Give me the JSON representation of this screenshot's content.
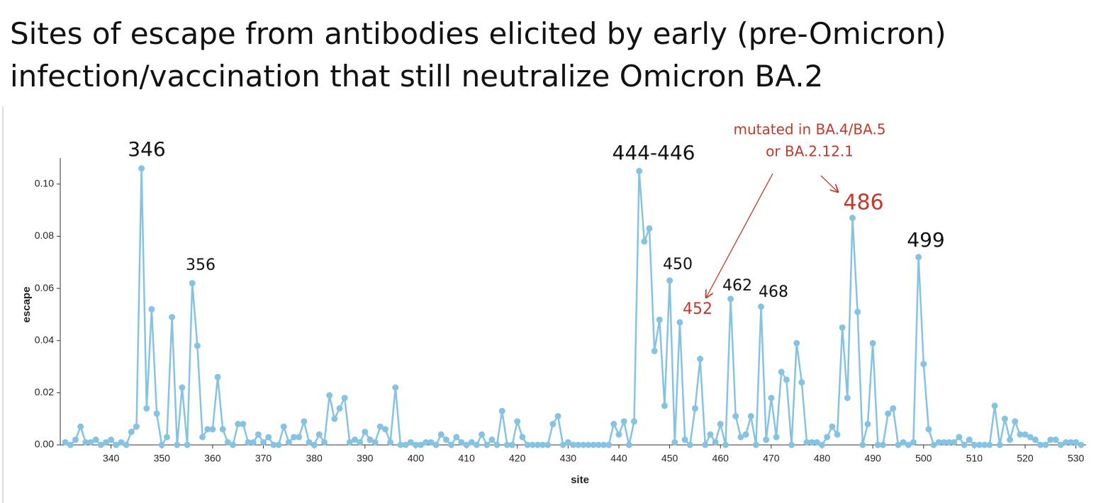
{
  "chart_data": {
    "type": "line",
    "title": [
      "Sites of escape from antibodies elicited by early (pre-Omicron)",
      "infection/vaccination that still neutralize Omicron BA.2"
    ],
    "xlabel": "site",
    "ylabel": "escape",
    "x": [
      331,
      332,
      333,
      334,
      335,
      336,
      337,
      338,
      339,
      340,
      341,
      342,
      343,
      344,
      345,
      346,
      347,
      348,
      349,
      350,
      351,
      352,
      353,
      354,
      355,
      356,
      357,
      358,
      359,
      360,
      361,
      362,
      363,
      364,
      365,
      366,
      367,
      368,
      369,
      370,
      371,
      372,
      373,
      374,
      375,
      376,
      377,
      378,
      379,
      380,
      381,
      382,
      383,
      384,
      385,
      386,
      387,
      388,
      389,
      390,
      391,
      392,
      393,
      394,
      395,
      396,
      397,
      398,
      399,
      400,
      401,
      402,
      403,
      404,
      405,
      406,
      407,
      408,
      409,
      410,
      411,
      412,
      413,
      414,
      415,
      416,
      417,
      418,
      419,
      420,
      421,
      422,
      423,
      424,
      425,
      426,
      427,
      428,
      429,
      430,
      431,
      432,
      433,
      434,
      435,
      436,
      437,
      438,
      439,
      440,
      441,
      442,
      443,
      444,
      445,
      446,
      447,
      448,
      449,
      450,
      451,
      452,
      453,
      454,
      455,
      456,
      457,
      458,
      459,
      460,
      461,
      462,
      463,
      464,
      465,
      466,
      467,
      468,
      469,
      470,
      471,
      472,
      473,
      474,
      475,
      476,
      477,
      478,
      479,
      480,
      481,
      482,
      483,
      484,
      485,
      486,
      487,
      488,
      489,
      490,
      491,
      492,
      493,
      494,
      495,
      496,
      497,
      498,
      499,
      500,
      501,
      502,
      503,
      504,
      505,
      506,
      507,
      508,
      509,
      510,
      511,
      512,
      513,
      514,
      515,
      516,
      517,
      518,
      519,
      520,
      521,
      522,
      523,
      524,
      525,
      526,
      527,
      528,
      529,
      530,
      531
    ],
    "series": [
      {
        "name": "escape",
        "color": "#86c3e3",
        "values": [
          0.001,
          0.0,
          0.002,
          0.007,
          0.001,
          0.001,
          0.002,
          0.0,
          0.001,
          0.002,
          0.0,
          0.001,
          0.0,
          0.005,
          0.007,
          0.106,
          0.014,
          0.052,
          0.012,
          0.0,
          0.003,
          0.049,
          0.0,
          0.022,
          0.0,
          0.062,
          0.038,
          0.003,
          0.006,
          0.006,
          0.026,
          0.006,
          0.001,
          0.0,
          0.008,
          0.008,
          0.001,
          0.001,
          0.004,
          0.001,
          0.003,
          0.0,
          0.0,
          0.007,
          0.001,
          0.003,
          0.003,
          0.009,
          0.001,
          0.0,
          0.004,
          0.001,
          0.019,
          0.01,
          0.014,
          0.018,
          0.001,
          0.002,
          0.001,
          0.005,
          0.002,
          0.001,
          0.007,
          0.006,
          0.001,
          0.022,
          0.0,
          0.0,
          0.001,
          0.0,
          0.0,
          0.001,
          0.001,
          0.0,
          0.004,
          0.002,
          0.0,
          0.003,
          0.001,
          0.0,
          0.001,
          0.0,
          0.004,
          0.0,
          0.002,
          0.0,
          0.013,
          0.0,
          0.0,
          0.009,
          0.003,
          0.0,
          0.0,
          0.0,
          0.0,
          0.0,
          0.008,
          0.011,
          0.0,
          0.001,
          0.0,
          0.0,
          0.0,
          0.0,
          0.0,
          0.0,
          0.0,
          0.0,
          0.008,
          0.004,
          0.009,
          0.0,
          0.009,
          0.105,
          0.078,
          0.083,
          0.036,
          0.048,
          0.015,
          0.063,
          0.001,
          0.047,
          0.002,
          0.0,
          0.014,
          0.033,
          0.0,
          0.004,
          0.001,
          0.008,
          0.0,
          0.056,
          0.011,
          0.003,
          0.004,
          0.011,
          0.0,
          0.053,
          0.002,
          0.018,
          0.003,
          0.028,
          0.025,
          0.0,
          0.039,
          0.024,
          0.001,
          0.001,
          0.001,
          0.0,
          0.003,
          0.007,
          0.004,
          0.045,
          0.018,
          0.087,
          0.051,
          0.0,
          0.008,
          0.039,
          0.0,
          0.0,
          0.012,
          0.014,
          0.0,
          0.001,
          0.0,
          0.001,
          0.072,
          0.031,
          0.006,
          0.0,
          0.001,
          0.001,
          0.001,
          0.001,
          0.003,
          0.0,
          0.002,
          0.0,
          0.0,
          0.0,
          0.0,
          0.015,
          0.0,
          0.01,
          0.002,
          0.009,
          0.004,
          0.004,
          0.003,
          0.002,
          0.0,
          0.0,
          0.002,
          0.002,
          0.0,
          0.001,
          0.001,
          0.001,
          0.0
        ]
      }
    ],
    "xlim": [
      330,
      532
    ],
    "xticks": [
      340,
      350,
      360,
      370,
      380,
      390,
      400,
      410,
      420,
      430,
      440,
      450,
      460,
      470,
      480,
      490,
      500,
      510,
      520,
      530
    ],
    "ylim": [
      0,
      0.11
    ],
    "yticks": [
      {
        "value": 0,
        "label": "0.00"
      },
      {
        "value": 0.02,
        "label": "0.02"
      },
      {
        "value": 0.04,
        "label": "0.04"
      },
      {
        "value": 0.06,
        "label": "0.06"
      },
      {
        "value": 0.08,
        "label": "0.08"
      },
      {
        "value": 0.1,
        "label": "0.10"
      }
    ],
    "annotations": [
      "346",
      "356",
      "444-446",
      "450",
      "452",
      "462",
      "468",
      "486",
      "499",
      "mutated in BA.4/BA.5",
      "or BA.2.12.1"
    ]
  }
}
